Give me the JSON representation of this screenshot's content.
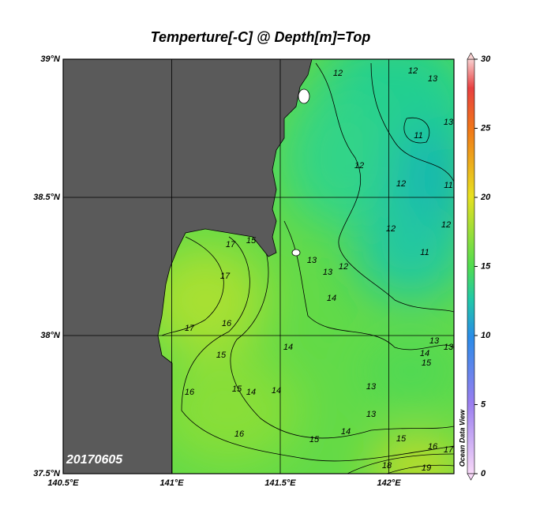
{
  "title": "Temperture[-C] @ Depth[m]=Top",
  "date": "20170605",
  "watermark": "Ocean Data View",
  "map": {
    "lonlim": [
      140.5,
      142.3
    ],
    "latlim": [
      37.5,
      39
    ],
    "lonticks": [
      {
        "value": 140.5,
        "label": "140.5°E"
      },
      {
        "value": 141,
        "label": "141°E"
      },
      {
        "value": 141.5,
        "label": "141.5°E"
      },
      {
        "value": 142,
        "label": "142°E"
      }
    ],
    "latticks": [
      {
        "value": 37.5,
        "label": "37.5°N"
      },
      {
        "value": 38,
        "label": "38°N"
      },
      {
        "value": 38.5,
        "label": "38.5°N"
      },
      {
        "value": 39,
        "label": "39°N"
      }
    ],
    "grid": true
  },
  "colorbar": {
    "lim": [
      0,
      30
    ],
    "ticks": [
      0,
      5,
      10,
      15,
      20,
      25,
      30
    ]
  },
  "contour_labels": [
    12,
    12,
    12,
    12,
    12,
    12,
    12,
    13,
    13,
    13,
    13,
    13,
    13,
    13,
    13,
    11,
    11,
    11,
    14,
    14,
    14,
    14,
    14,
    14,
    15,
    15,
    15,
    15,
    15,
    15,
    16,
    16,
    16,
    16,
    17,
    17,
    17,
    17,
    18,
    19
  ]
}
